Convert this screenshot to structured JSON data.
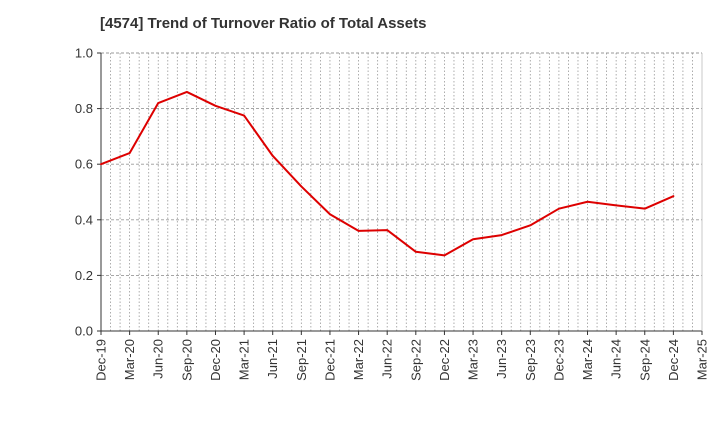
{
  "chart_data": {
    "type": "line",
    "title": "[4574]  Trend of Turnover Ratio of Total Assets",
    "xlabel": "",
    "ylabel": "",
    "ylim": [
      0.0,
      1.0
    ],
    "yticks": [
      "0.0",
      "0.2",
      "0.4",
      "0.6",
      "0.8",
      "1.0"
    ],
    "ytick_values": [
      0.0,
      0.2,
      0.4,
      0.6,
      0.8,
      1.0
    ],
    "xticks": [
      "Dec-19",
      "Mar-20",
      "Jun-20",
      "Sep-20",
      "Dec-20",
      "Mar-21",
      "Jun-21",
      "Sep-21",
      "Dec-21",
      "Mar-22",
      "Jun-22",
      "Sep-22",
      "Dec-22",
      "Mar-23",
      "Jun-23",
      "Sep-23",
      "Dec-23",
      "Mar-24",
      "Jun-24",
      "Sep-24",
      "Dec-24",
      "Mar-25"
    ],
    "grid": true,
    "legend": "none",
    "colors": {
      "line": "#dd0000",
      "grid": "#999999",
      "axis": "#333333"
    },
    "series": [
      {
        "x": [
          "Dec-19",
          "Mar-20",
          "Jun-20",
          "Sep-20",
          "Dec-20",
          "Mar-21",
          "Jun-21",
          "Sep-21",
          "Dec-21",
          "Mar-22",
          "Jun-22",
          "Sep-22",
          "Dec-22",
          "Mar-23",
          "Jun-23",
          "Sep-23",
          "Dec-23",
          "Mar-24",
          "Jun-24",
          "Sep-24",
          "Dec-24"
        ],
        "values": [
          0.6,
          0.64,
          0.82,
          0.86,
          0.81,
          0.775,
          0.63,
          0.52,
          0.42,
          0.36,
          0.363,
          0.285,
          0.272,
          0.33,
          0.345,
          0.38,
          0.44,
          0.465,
          0.452,
          0.44,
          0.485
        ]
      }
    ]
  }
}
